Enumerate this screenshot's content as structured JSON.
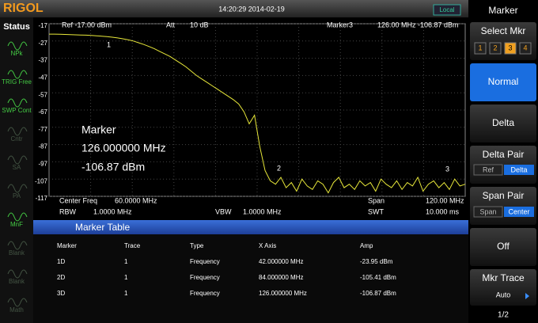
{
  "top_bar": {
    "logo": "RIGOL",
    "datetime": "14:20:29 2014-02-19",
    "local": "Local"
  },
  "status": {
    "title": "Status",
    "items": [
      "NPk",
      "TRIG Free",
      "SWP Cont",
      "Cntr",
      "SA",
      "PA",
      "MnF",
      "Blank",
      "Blank",
      "Math"
    ]
  },
  "chart_data": {
    "type": "line",
    "color": "#e8e83a",
    "grid": true,
    "header": {
      "ref": "Ref -17.00 dBm",
      "att_label": "Att",
      "att": "10 dB",
      "marker_label": "Marker3",
      "marker_freq": "126.00 MHz",
      "marker_amp": "-106.87 dBm"
    },
    "ylim": [
      -117,
      -17
    ],
    "yticks": [
      -17,
      -27,
      -37,
      -47,
      -57,
      -67,
      -77,
      -87,
      -97,
      -107,
      -117
    ],
    "values": [
      -23,
      -23,
      -23.1,
      -23.2,
      -23.3,
      -23.4,
      -23.5,
      -23.6,
      -23.8,
      -24,
      -24.2,
      -24.5,
      -24.8,
      -25.2,
      -25.7,
      -26.3,
      -27,
      -28,
      -29,
      -30.2,
      -31.5,
      -33,
      -34.5,
      -36,
      -38,
      -40,
      -42,
      -44.5,
      -47,
      -49,
      -51,
      -53,
      -55,
      -57,
      -59,
      -61,
      -63.5,
      -68,
      -75,
      -70,
      -88,
      -102,
      -108,
      -110,
      -106,
      -112,
      -109,
      -114,
      -107,
      -111,
      -113,
      -108,
      -110,
      -115,
      -109,
      -106,
      -112,
      -110,
      -113,
      -108,
      -111,
      -109,
      -114,
      -107,
      -110,
      -112,
      -108,
      -113,
      -109,
      -111,
      -106,
      -114,
      -110,
      -108,
      -112,
      -109,
      -113,
      -107,
      -111,
      -110
    ],
    "marker_labels": [
      "1",
      "2",
      "3"
    ],
    "footer": {
      "center_label": "Center Freq",
      "center": "60.0000 MHz",
      "span_label": "Span",
      "span": "120.00 MHz",
      "rbw_label": "RBW",
      "rbw": "1.0000 MHz",
      "vbw_label": "VBW",
      "vbw": "1.0000 MHz",
      "swt_label": "SWT",
      "swt": "10.000 ms"
    }
  },
  "marker_info": {
    "title": "Marker",
    "freq": "126.000000 MHz",
    "amp": "-106.87 dBm"
  },
  "marker_table": {
    "title": "Marker Table",
    "columns": [
      "Marker",
      "Trace",
      "Type",
      "X Axis",
      "Amp"
    ],
    "rows": [
      [
        "1D",
        "1",
        "Frequency",
        "42.000000 MHz",
        "-23.95 dBm"
      ],
      [
        "2D",
        "1",
        "Frequency",
        "84.000000 MHz",
        "-105.41 dBm"
      ],
      [
        "3D",
        "1",
        "Frequency",
        "126.000000 MHz",
        "-106.87 dBm"
      ]
    ]
  },
  "menu": {
    "title": "Marker",
    "select_mkr": "Select Mkr",
    "keys": [
      "1",
      "2",
      "3",
      "4"
    ],
    "normal": "Normal",
    "delta": "Delta",
    "delta_pair": "Delta Pair",
    "ref": "Ref",
    "delta_small": "Delta",
    "span_pair": "Span Pair",
    "span": "Span",
    "center": "Center",
    "off": "Off",
    "mkr_trace": "Mkr Trace",
    "auto": "Auto",
    "page": "1/2"
  }
}
